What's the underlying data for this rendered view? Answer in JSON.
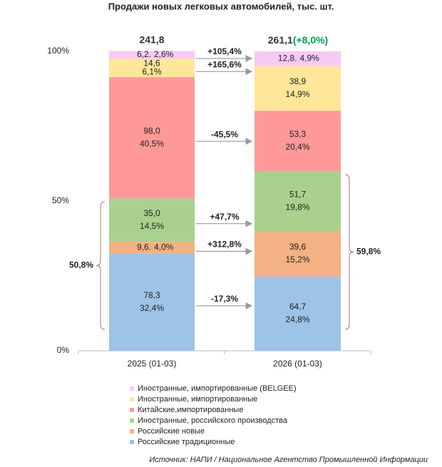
{
  "chart_data": {
    "type": "stacked_bar_100",
    "title": "Продажи новых легковых автомобилей, тыс. шт.",
    "categories": [
      "2025 (01-03)",
      "2026 (01-03)"
    ],
    "ylim": [
      0,
      100
    ],
    "yticks": [
      {
        "value": 0,
        "label": "0%"
      },
      {
        "value": 50,
        "label": "50%"
      },
      {
        "value": 100,
        "label": "100%"
      }
    ],
    "totals": [
      241.8,
      261.1
    ],
    "total_labels": [
      "241,8",
      "261,1"
    ],
    "total_change": 8.0,
    "total_change_label": "(+8,0%)",
    "series": [
      {
        "name": "Иностранные, импортированные (BELGEE)",
        "color": "#f9c9f5",
        "values": [
          2.6,
          4.9
        ],
        "value_labels": [
          "2,6%",
          "4,9%"
        ],
        "counts": [
          6.2,
          12.8
        ],
        "count_labels": [
          "6,2.",
          "12,8."
        ],
        "change": 105.4,
        "change_label": "+105,4%"
      },
      {
        "name": "Иностранные, импортированные",
        "color": "#ffe699",
        "values": [
          6.1,
          14.9
        ],
        "value_labels": [
          "6,1%",
          "14,9%"
        ],
        "counts": [
          14.6,
          38.9
        ],
        "count_labels": [
          "14,6",
          "38,9"
        ],
        "change": 165.6,
        "change_label": "+165,6%"
      },
      {
        "name": "Китайские,импортированные",
        "color": "#ff9999",
        "values": [
          40.5,
          20.4
        ],
        "value_labels": [
          "40,5%",
          "20,4%"
        ],
        "counts": [
          98.0,
          53.3
        ],
        "count_labels": [
          "98,0",
          "53,3"
        ],
        "change": -45.5,
        "change_label": "-45,5%"
      },
      {
        "name": "Иностранные, российского производства",
        "color": "#a9d18e",
        "values": [
          14.5,
          19.8
        ],
        "value_labels": [
          "14,5%",
          "19,8%"
        ],
        "counts": [
          35.0,
          51.7
        ],
        "count_labels": [
          "35,0",
          "51,7"
        ],
        "change": 47.7,
        "change_label": "+47,7%"
      },
      {
        "name": "Российские новые",
        "color": "#f4b183",
        "values": [
          4.0,
          15.2
        ],
        "value_labels": [
          "4,0%",
          "15,2%"
        ],
        "counts": [
          9.6,
          39.6
        ],
        "count_labels": [
          "9,6.",
          "39,6"
        ],
        "change": 312.8,
        "change_label": "+312,8%"
      },
      {
        "name": "Российские традиционные",
        "color": "#9dc3e6",
        "values": [
          32.4,
          24.8
        ],
        "value_labels": [
          "32,4%",
          "24,8%"
        ],
        "counts": [
          78.3,
          64.7
        ],
        "count_labels": [
          "78,3",
          "64,7"
        ],
        "change": -17.3,
        "change_label": "-17,3%"
      }
    ],
    "brackets": [
      {
        "value": 50.8,
        "label": "50,8%"
      },
      {
        "value": 59.8,
        "label": "59,8%"
      }
    ],
    "source": "Источник: НАПИ / Национальное Агентство Промышленной Информации"
  }
}
